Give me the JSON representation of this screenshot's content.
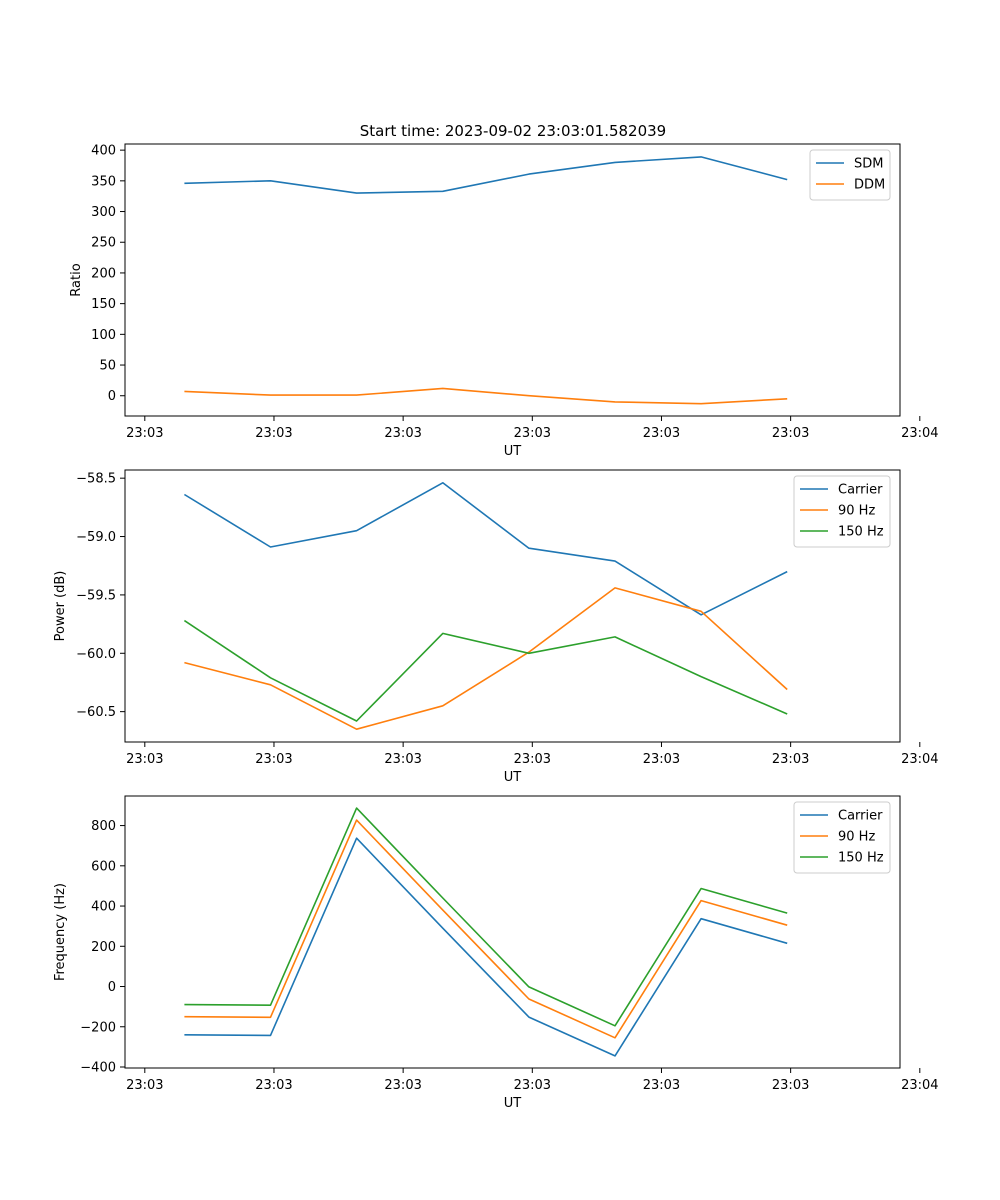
{
  "figure": {
    "title": "Start time: 2023-09-02 23:03:01.582039"
  },
  "chart_data": [
    {
      "type": "line",
      "xlabel": "UT",
      "ylabel": "Ratio",
      "x": [
        1,
        2,
        3,
        4,
        5,
        6,
        7,
        8
      ],
      "xlim": [
        0.31,
        9.31
      ],
      "xticks": [
        0.54,
        2.04,
        3.54,
        5.04,
        6.54,
        8.04,
        9.54
      ],
      "xtick_labels": [
        "23:03",
        "23:03",
        "23:03",
        "23:03",
        "23:03",
        "23:03",
        "23:04"
      ],
      "ylim": [
        -33,
        410
      ],
      "yticks": [
        0,
        50,
        100,
        150,
        200,
        250,
        300,
        350,
        400
      ],
      "ytick_labels": [
        "0",
        "50",
        "100",
        "150",
        "200",
        "250",
        "300",
        "350",
        "400"
      ],
      "legend": "top-right",
      "series": [
        {
          "name": "SDM",
          "color": "#1f77b4",
          "values": [
            346,
            350,
            330,
            333,
            361,
            380,
            389,
            352
          ]
        },
        {
          "name": "DDM",
          "color": "#ff7f0e",
          "values": [
            7,
            1,
            1,
            12,
            0,
            -10,
            -13,
            -5
          ]
        }
      ]
    },
    {
      "type": "line",
      "xlabel": "UT",
      "ylabel": "Power (dB)",
      "x": [
        1,
        2,
        3,
        4,
        5,
        6,
        7,
        8
      ],
      "xlim": [
        0.31,
        9.31
      ],
      "xticks": [
        0.54,
        2.04,
        3.54,
        5.04,
        6.54,
        8.04,
        9.54
      ],
      "xtick_labels": [
        "23:03",
        "23:03",
        "23:03",
        "23:03",
        "23:03",
        "23:03",
        "23:04"
      ],
      "ylim": [
        -60.76,
        -58.43
      ],
      "yticks": [
        -58.5,
        -59.0,
        -59.5,
        -60.0,
        -60.5
      ],
      "ytick_labels": [
        "−58.5",
        "−59.0",
        "−59.5",
        "−60.0",
        "−60.5"
      ],
      "legend": "top-right",
      "series": [
        {
          "name": "Carrier",
          "color": "#1f77b4",
          "values": [
            -58.64,
            -59.09,
            -58.95,
            -58.54,
            -59.1,
            -59.21,
            -59.67,
            -59.3
          ]
        },
        {
          "name": "90 Hz",
          "color": "#ff7f0e",
          "values": [
            -60.08,
            -60.27,
            -60.65,
            -60.45,
            -59.99,
            -59.44,
            -59.64,
            -60.31
          ]
        },
        {
          "name": "150 Hz",
          "color": "#2ca02c",
          "values": [
            -59.72,
            -60.21,
            -60.58,
            -59.83,
            -60.0,
            -59.86,
            -60.2,
            -60.52
          ]
        }
      ]
    },
    {
      "type": "line",
      "xlabel": "UT",
      "ylabel": "Frequency (Hz)",
      "x": [
        1,
        2,
        3,
        4,
        5,
        6,
        7,
        8
      ],
      "xlim": [
        0.31,
        9.31
      ],
      "xticks": [
        0.54,
        2.04,
        3.54,
        5.04,
        6.54,
        8.04,
        9.54
      ],
      "xtick_labels": [
        "23:03",
        "23:03",
        "23:03",
        "23:03",
        "23:03",
        "23:03",
        "23:04"
      ],
      "ylim": [
        -405,
        947
      ],
      "yticks": [
        800,
        600,
        400,
        200,
        0,
        -200,
        -400
      ],
      "ytick_labels": [
        "800",
        "600",
        "400",
        "200",
        "0",
        "−200",
        "−400"
      ],
      "legend": "top-right",
      "series": [
        {
          "name": "Carrier",
          "color": "#1f77b4",
          "values": [
            -240,
            -243,
            737,
            290,
            -152,
            -345,
            337,
            215
          ]
        },
        {
          "name": "90 Hz",
          "color": "#ff7f0e",
          "values": [
            -150,
            -153,
            827,
            380,
            -62,
            -255,
            427,
            305
          ]
        },
        {
          "name": "150 Hz",
          "color": "#2ca02c",
          "values": [
            -90,
            -93,
            887,
            440,
            -2,
            -195,
            487,
            365
          ]
        }
      ]
    }
  ]
}
